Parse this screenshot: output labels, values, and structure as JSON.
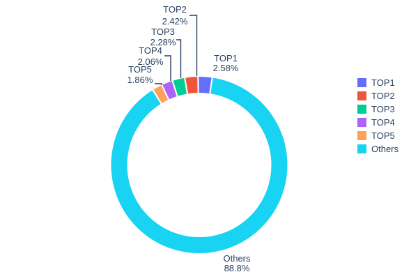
{
  "chart_data": {
    "type": "pie",
    "subtype": "donut",
    "hole_ratio": 0.8,
    "direction": "counterclockwise",
    "start_angle_cw_from_top_deg": 8.5,
    "labels": [
      "TOP1",
      "TOP2",
      "TOP3",
      "TOP4",
      "TOP5",
      "Others"
    ],
    "values_percent": [
      2.58,
      2.42,
      2.28,
      2.06,
      1.86,
      88.8
    ],
    "percent_labels": [
      "2.58%",
      "2.42%",
      "2.28%",
      "2.06%",
      "1.86%",
      "88.8%"
    ],
    "colors": [
      "#636EFA",
      "#EF553B",
      "#00CC96",
      "#AB63FA",
      "#FFA15A",
      "#19D3F3"
    ],
    "slice_border_color": "#FFFFFF",
    "label_text_color": "#2a3f5f",
    "leader_line_color": "#2a3f5f",
    "legend_position": "right",
    "background_color": "#FFFFFF"
  },
  "legend": {
    "items": [
      {
        "label": "TOP1",
        "color": "#636EFA"
      },
      {
        "label": "TOP2",
        "color": "#EF553B"
      },
      {
        "label": "TOP3",
        "color": "#00CC96"
      },
      {
        "label": "TOP4",
        "color": "#AB63FA"
      },
      {
        "label": "TOP5",
        "color": "#FFA15A"
      },
      {
        "label": "Others",
        "color": "#19D3F3"
      }
    ]
  }
}
